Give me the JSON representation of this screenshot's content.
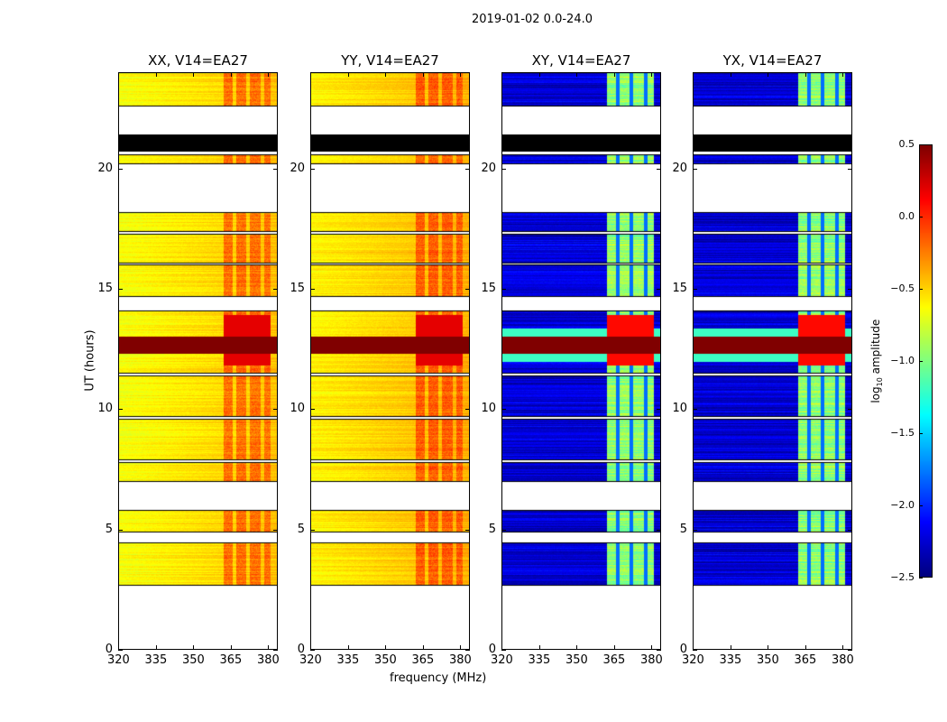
{
  "chart_data": {
    "type": "heatmap",
    "title": "2019-01-02 0.0-24.0",
    "xlabel": "frequency (MHz)",
    "ylabel": "UT (hours)",
    "xlim": [
      320,
      384
    ],
    "ylim": [
      0,
      24
    ],
    "xticks": [
      "320",
      "335",
      "350",
      "365",
      "380"
    ],
    "xtick_values": [
      320,
      335,
      350,
      365,
      380
    ],
    "yticks": [
      "0",
      "5",
      "10",
      "15",
      "20"
    ],
    "ytick_values": [
      0,
      5,
      10,
      15,
      20
    ],
    "colorbar": {
      "label": "log10 amplitude",
      "label_main": "log",
      "label_sub": "10",
      "label_rest": " amplitude",
      "range": [
        -2.5,
        0.5
      ],
      "ticks": [
        "0.5",
        "0.0",
        "−0.5",
        "−1.0",
        "−1.5",
        "−2.0",
        "−2.5"
      ],
      "tick_values": [
        0.5,
        0.0,
        -0.5,
        -1.0,
        -1.5,
        -2.0,
        -2.5
      ],
      "colormap": "jet"
    },
    "time_segments_hours": [
      [
        2.7,
        4.45
      ],
      [
        4.9,
        5.8
      ],
      [
        7.0,
        7.8
      ],
      [
        7.9,
        9.6
      ],
      [
        9.7,
        11.4
      ],
      [
        11.5,
        14.1
      ],
      [
        14.7,
        16.0
      ],
      [
        16.1,
        17.3
      ],
      [
        17.4,
        18.2
      ],
      [
        20.2,
        20.6
      ],
      [
        22.6,
        24.0
      ]
    ],
    "flagged_black_hours": [
      [
        20.7,
        21.4
      ]
    ],
    "flare_hours": [
      12.3,
      13.0
    ],
    "rfi_band_mhz": [
      362,
      381
    ],
    "panels": [
      {
        "title": "XX, V14=EA27",
        "base_level": -0.65,
        "band_level": -0.2,
        "flare_level": 0.5
      },
      {
        "title": "YY, V14=EA27",
        "base_level": -0.6,
        "band_level": -0.15,
        "flare_level": 0.5
      },
      {
        "title": "XY, V14=EA27",
        "base_level": -2.25,
        "band_level": -0.95,
        "flare_level": 0.5
      },
      {
        "title": "YX, V14=EA27",
        "base_level": -2.25,
        "band_level": -0.95,
        "flare_level": 0.5
      }
    ]
  }
}
